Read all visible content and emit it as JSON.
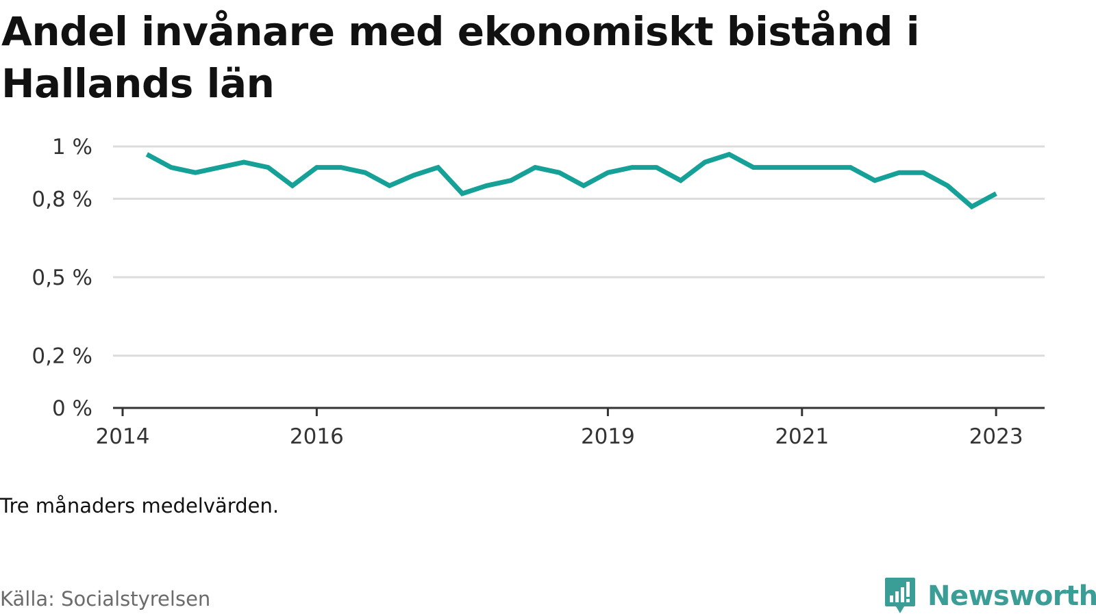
{
  "header": {
    "title": "Andel invånare med ekonomiskt bistånd i Hallands län"
  },
  "footer": {
    "note": "Tre månaders medelvärden.",
    "source": "Källa: Socialstyrelsen",
    "brand": "Newsworthy"
  },
  "colors": {
    "line": "#15a198",
    "grid": "#dcdcdc",
    "axis": "#333333",
    "brand": "#3a9e96"
  },
  "chart_data": {
    "type": "line",
    "title": "Andel invånare med ekonomiskt bistånd i Hallands län",
    "xlabel": "",
    "ylabel": "",
    "grid": true,
    "legend": "none",
    "x_ticks": [
      {
        "label": "2014",
        "value": 2014.0
      },
      {
        "label": "2016",
        "value": 2016.0
      },
      {
        "label": "2019",
        "value": 2019.0
      },
      {
        "label": "2021",
        "value": 2021.0
      },
      {
        "label": "2023",
        "value": 2023.0
      }
    ],
    "y_ticks": [
      {
        "label": "0 %",
        "value": 0.0
      },
      {
        "label": "0,2 %",
        "value": 0.2
      },
      {
        "label": "0,5 %",
        "value": 0.5
      },
      {
        "label": "0,8 %",
        "value": 0.8
      },
      {
        "label": "1 %",
        "value": 1.0
      }
    ],
    "xlim": [
      2014.0,
      2023.5
    ],
    "ylim": [
      0,
      1.0
    ],
    "series": [
      {
        "values": [
          {
            "x": "2014 Q2",
            "y": 0.97
          },
          {
            "x": "2014 Q3",
            "y": 0.92
          },
          {
            "x": "2014 Q4",
            "y": 0.9
          },
          {
            "x": "2015 Q1",
            "y": 0.92
          },
          {
            "x": "2015 Q2",
            "y": 0.94
          },
          {
            "x": "2015 Q3",
            "y": 0.92
          },
          {
            "x": "2015 Q4",
            "y": 0.85
          },
          {
            "x": "2016 Q1",
            "y": 0.92
          },
          {
            "x": "2016 Q2",
            "y": 0.92
          },
          {
            "x": "2016 Q3",
            "y": 0.9
          },
          {
            "x": "2016 Q4",
            "y": 0.85
          },
          {
            "x": "2017 Q1",
            "y": 0.89
          },
          {
            "x": "2017 Q2",
            "y": 0.92
          },
          {
            "x": "2017 Q3",
            "y": 0.82
          },
          {
            "x": "2017 Q4",
            "y": 0.85
          },
          {
            "x": "2018 Q1",
            "y": 0.87
          },
          {
            "x": "2018 Q2",
            "y": 0.92
          },
          {
            "x": "2018 Q3",
            "y": 0.9
          },
          {
            "x": "2018 Q4",
            "y": 0.85
          },
          {
            "x": "2019 Q1",
            "y": 0.9
          },
          {
            "x": "2019 Q2",
            "y": 0.92
          },
          {
            "x": "2019 Q3",
            "y": 0.92
          },
          {
            "x": "2019 Q4",
            "y": 0.87
          },
          {
            "x": "2020 Q1",
            "y": 0.94
          },
          {
            "x": "2020 Q2",
            "y": 0.97
          },
          {
            "x": "2020 Q3",
            "y": 0.92
          },
          {
            "x": "2020 Q4",
            "y": 0.92
          },
          {
            "x": "2021 Q1",
            "y": 0.92
          },
          {
            "x": "2021 Q2",
            "y": 0.92
          },
          {
            "x": "2021 Q3",
            "y": 0.92
          },
          {
            "x": "2021 Q4",
            "y": 0.87
          },
          {
            "x": "2022 Q1",
            "y": 0.9
          },
          {
            "x": "2022 Q2",
            "y": 0.9
          },
          {
            "x": "2022 Q3",
            "y": 0.85
          },
          {
            "x": "2022 Q4",
            "y": 0.77
          },
          {
            "x": "2023 Q1",
            "y": 0.82
          }
        ]
      }
    ]
  }
}
